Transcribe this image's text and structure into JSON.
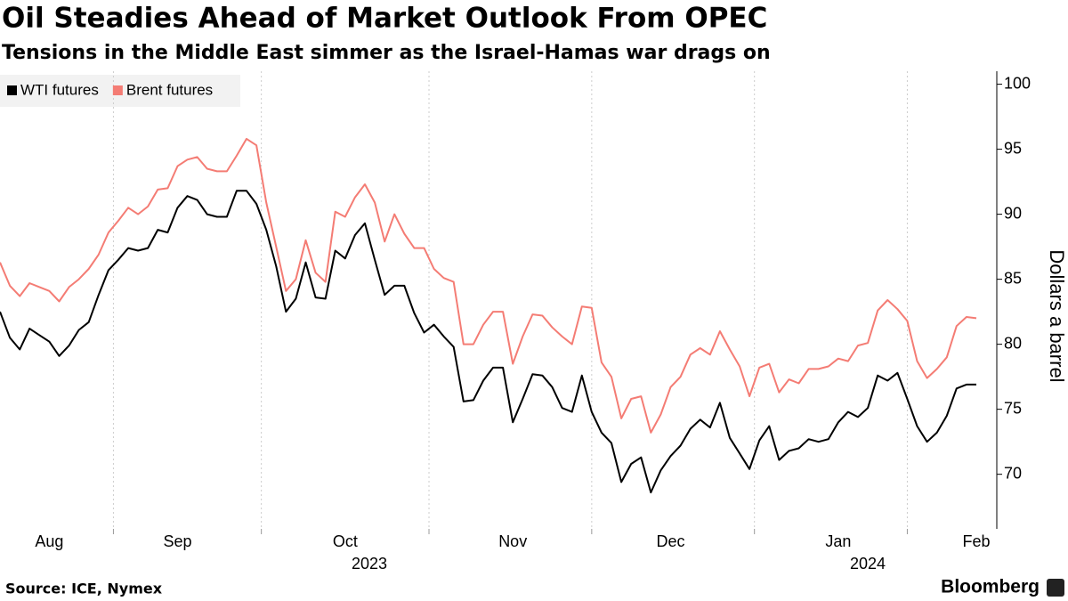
{
  "chart_data": {
    "type": "line",
    "title": "Oil Steadies Ahead of Market Outlook From OPEC",
    "subtitle": "Tensions in the Middle East simmer as the Israel-Hamas war drags on",
    "y_label": "Dollars a barrel",
    "source": "Source: ICE, Nymex",
    "brand": "Bloomberg",
    "categories": [
      null,
      null,
      null,
      null,
      null,
      "Aug",
      null,
      null,
      null,
      null,
      null,
      null,
      null,
      null,
      null,
      null,
      null,
      null,
      "Sep",
      null,
      null,
      null,
      null,
      null,
      null,
      null,
      null,
      null,
      null,
      null,
      null,
      null,
      null,
      null,
      null,
      "Oct",
      null,
      null,
      null,
      null,
      null,
      null,
      null,
      null,
      null,
      null,
      null,
      null,
      null,
      null,
      null,
      null,
      "Nov",
      null,
      null,
      null,
      null,
      null,
      null,
      null,
      null,
      null,
      null,
      null,
      null,
      null,
      null,
      null,
      "Dec",
      null,
      null,
      null,
      null,
      null,
      null,
      null,
      null,
      null,
      null,
      null,
      null,
      null,
      null,
      null,
      null,
      "Jan",
      null,
      null,
      null,
      null,
      null,
      null,
      null,
      null,
      null,
      null,
      null,
      null,
      null,
      "Feb"
    ],
    "year_labels": [
      "2023",
      "2024"
    ],
    "series": [
      {
        "name": "WTI futures",
        "color": "#000000",
        "values": [
          82.5,
          80.5,
          79.6,
          81.2,
          80.7,
          80.2,
          79.1,
          79.9,
          81.1,
          81.7,
          83.8,
          85.7,
          86.5,
          87.4,
          87.2,
          87.4,
          88.8,
          88.6,
          90.5,
          91.4,
          91.1,
          90,
          89.8,
          89.8,
          91.8,
          91.8,
          90.8,
          88.8,
          86,
          82.5,
          83.5,
          86.3,
          83.6,
          83.5,
          87.2,
          86.6,
          88.4,
          89.3,
          86.5,
          83.8,
          84.5,
          84.5,
          82.4,
          80.9,
          81.5,
          80.6,
          79.8,
          75.6,
          75.7,
          77.2,
          78.2,
          78.2,
          74,
          75.8,
          77.7,
          77.6,
          76.7,
          75.1,
          74.8,
          77.6,
          74.8,
          73.2,
          72.4,
          69.4,
          70.8,
          71.3,
          68.6,
          70.3,
          71.4,
          72.2,
          73.5,
          74.2,
          73.6,
          75.5,
          72.8,
          71.6,
          70.4,
          72.6,
          73.7,
          71.1,
          71.8,
          72,
          72.7,
          72.5,
          72.7,
          74,
          74.8,
          74.4,
          75.1,
          77.6,
          77.2,
          77.8,
          75.8,
          73.7,
          72.5,
          73.2,
          74.5,
          76.6,
          76.9,
          76.9
        ]
      },
      {
        "name": "Brent futures",
        "color": "#f47c74",
        "values": [
          86.3,
          84.5,
          83.7,
          84.7,
          84.4,
          84.1,
          83.3,
          84.4,
          85,
          85.8,
          86.9,
          88.6,
          89.5,
          90.5,
          90,
          90.6,
          91.9,
          92,
          93.7,
          94.2,
          94.4,
          93.5,
          93.3,
          93.3,
          94.5,
          95.8,
          95.3,
          90.9,
          87.5,
          84.1,
          85,
          88,
          85.5,
          84.8,
          90.2,
          89.8,
          91.3,
          92.3,
          90.9,
          87.9,
          90,
          88.5,
          87.4,
          87.4,
          85.8,
          85.1,
          84.8,
          80,
          80,
          81.5,
          82.5,
          82.5,
          78.5,
          80.6,
          82.3,
          82.2,
          81.3,
          80.6,
          80,
          82.9,
          82.8,
          78.6,
          77.5,
          74.3,
          75.8,
          76,
          73.2,
          74.6,
          76.7,
          77.5,
          79.2,
          79.7,
          79.2,
          81,
          79.6,
          78.3,
          76,
          78.2,
          78.5,
          76.3,
          77.3,
          77,
          78.1,
          78.1,
          78.3,
          78.9,
          78.7,
          79.9,
          80.1,
          82.6,
          83.4,
          82.7,
          81.8,
          78.7,
          77.4,
          78.1,
          79,
          81.4,
          82.1,
          82
        ]
      }
    ],
    "ylim": [
      65.8,
      101
    ],
    "yticks": [
      70,
      75,
      80,
      85,
      90,
      95,
      100
    ],
    "grid": false
  }
}
